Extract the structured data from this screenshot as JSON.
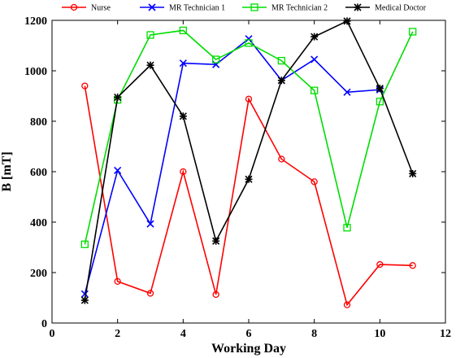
{
  "chart_data": {
    "type": "line",
    "xlabel": "Working Day",
    "ylabel": "B [mT]",
    "xlim": [
      0,
      12
    ],
    "ylim": [
      0,
      1200
    ],
    "xticks": [
      0,
      2,
      4,
      6,
      8,
      10,
      12
    ],
    "yticks": [
      0,
      200,
      400,
      600,
      800,
      1000,
      1200
    ],
    "grid": false,
    "legend_position": "top",
    "series": [
      {
        "name": "Nurse",
        "color": "#ff0000",
        "marker": "circle",
        "x": [
          1,
          2,
          3,
          4,
          5,
          6,
          7,
          8,
          9,
          10,
          11
        ],
        "y": [
          940,
          165,
          118,
          600,
          113,
          888,
          650,
          560,
          72,
          232,
          228
        ]
      },
      {
        "name": "MR Technician 1",
        "color": "#0000ff",
        "marker": "x",
        "x": [
          1,
          2,
          3,
          4,
          5,
          6,
          7,
          8,
          9,
          10
        ],
        "y": [
          115,
          605,
          393,
          1030,
          1025,
          1127,
          962,
          1045,
          915,
          925
        ]
      },
      {
        "name": "MR Technician 2",
        "color": "#00dd00",
        "marker": "square",
        "x": [
          1,
          2,
          3,
          4,
          5,
          6,
          7,
          8,
          9,
          10,
          11
        ],
        "y": [
          312,
          885,
          1142,
          1160,
          1045,
          1110,
          1040,
          922,
          378,
          878,
          1155
        ]
      },
      {
        "name": "Medical Doctor",
        "color": "#000000",
        "marker": "asterisk",
        "x": [
          1,
          2,
          3,
          4,
          5,
          6,
          7,
          8,
          9,
          10,
          11
        ],
        "y": [
          90,
          895,
          1022,
          820,
          325,
          570,
          962,
          1135,
          1197,
          930,
          592
        ]
      }
    ]
  }
}
